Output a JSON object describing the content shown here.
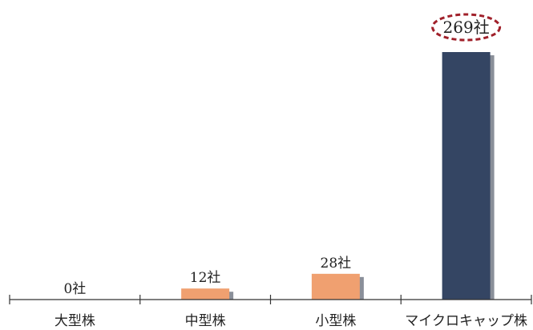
{
  "chart_data": {
    "type": "bar",
    "categories": [
      "大型株",
      "中型株",
      "小型株",
      "マイクロキャップ株"
    ],
    "values": [
      0,
      12,
      28,
      269
    ],
    "data_labels": [
      "0社",
      "12社",
      "28社",
      "269社"
    ],
    "title": "",
    "xlabel": "",
    "ylabel": "",
    "ylim": [
      0,
      269
    ],
    "grid": false,
    "legend": "none",
    "highlighted_category": "マイクロキャップ株",
    "colors": {
      "bar_default": "#F0A070",
      "bar_highlight": "#344563",
      "bar_shadow": "#8A8F99",
      "axis": "#333333",
      "callout_ring": "#A0202A"
    }
  }
}
